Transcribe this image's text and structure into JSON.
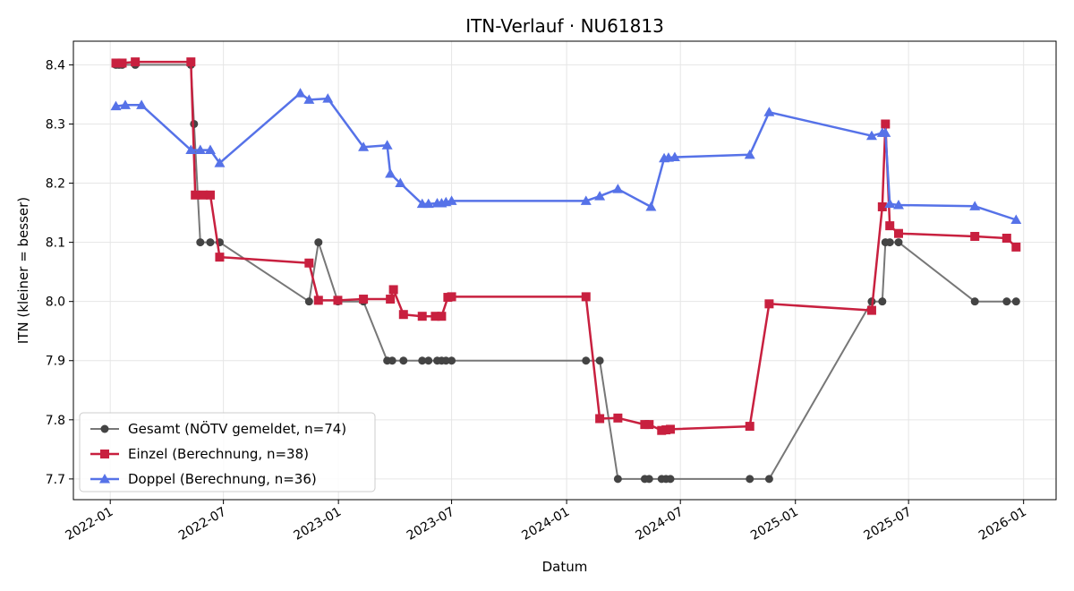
{
  "chart_data": {
    "type": "line",
    "title": "ITN-Verlauf · NU61813",
    "xlabel": "Datum",
    "ylabel": "ITN  (kleiner = besser)",
    "x_axis_type": "date",
    "xlim": [
      "2021-11-03",
      "2026-02-22"
    ],
    "ylim": [
      7.665,
      8.44
    ],
    "x_ticks": [
      "2022-01-01",
      "2022-07-01",
      "2023-01-01",
      "2023-07-01",
      "2024-01-01",
      "2024-07-01",
      "2025-01-01",
      "2025-07-01",
      "2026-01-01"
    ],
    "x_tick_labels": [
      "2022-01",
      "2022-07",
      "2023-01",
      "2023-07",
      "2024-01",
      "2024-07",
      "2025-01",
      "2025-07",
      "2026-01"
    ],
    "y_ticks": [
      7.7,
      7.8,
      7.9,
      8.0,
      8.1,
      8.2,
      8.3,
      8.4
    ],
    "y_tick_labels": [
      "7.7",
      "7.8",
      "7.9",
      "8.0",
      "8.1",
      "8.2",
      "8.3",
      "8.4"
    ],
    "grid": true,
    "legend_position": "bottom-left",
    "series": [
      {
        "name": "Gesamt (NÖTV gemeldet, n=74)",
        "color": "#777777",
        "marker_color": "#444444",
        "marker": "circle",
        "points": [
          [
            "2022-01-10",
            8.4
          ],
          [
            "2022-01-15",
            8.4
          ],
          [
            "2022-01-20",
            8.4
          ],
          [
            "2022-02-10",
            8.4
          ],
          [
            "2022-05-10",
            8.4
          ],
          [
            "2022-05-15",
            8.3
          ],
          [
            "2022-05-25",
            8.1
          ],
          [
            "2022-06-10",
            8.1
          ],
          [
            "2022-06-25",
            8.1
          ],
          [
            "2022-11-15",
            8.0
          ],
          [
            "2022-11-30",
            8.1
          ],
          [
            "2022-12-31",
            8.0
          ],
          [
            "2023-02-10",
            8.0
          ],
          [
            "2023-03-20",
            7.9
          ],
          [
            "2023-03-28",
            7.9
          ],
          [
            "2023-04-15",
            7.9
          ],
          [
            "2023-05-15",
            7.9
          ],
          [
            "2023-05-25",
            7.9
          ],
          [
            "2023-06-08",
            7.9
          ],
          [
            "2023-06-15",
            7.9
          ],
          [
            "2023-06-22",
            7.9
          ],
          [
            "2023-07-01",
            7.9
          ],
          [
            "2024-02-01",
            7.9
          ],
          [
            "2024-02-23",
            7.9
          ],
          [
            "2024-03-23",
            7.7
          ],
          [
            "2024-05-05",
            7.7
          ],
          [
            "2024-05-12",
            7.7
          ],
          [
            "2024-06-01",
            7.7
          ],
          [
            "2024-06-08",
            7.7
          ],
          [
            "2024-06-15",
            7.7
          ],
          [
            "2024-10-20",
            7.7
          ],
          [
            "2024-11-20",
            7.7
          ],
          [
            "2025-05-03",
            8.0
          ],
          [
            "2025-05-20",
            8.0
          ],
          [
            "2025-05-25",
            8.1
          ],
          [
            "2025-06-01",
            8.1
          ],
          [
            "2025-06-15",
            8.1
          ],
          [
            "2025-10-15",
            8.0
          ],
          [
            "2025-12-05",
            8.0
          ],
          [
            "2025-12-20",
            8.0
          ]
        ]
      },
      {
        "name": "Einzel (Berechnung, n=38)",
        "color": "#c8203f",
        "marker_color": "#c8203f",
        "marker": "square",
        "points": [
          [
            "2022-01-10",
            8.403
          ],
          [
            "2022-01-20",
            8.403
          ],
          [
            "2022-02-10",
            8.405
          ],
          [
            "2022-05-10",
            8.405
          ],
          [
            "2022-05-17",
            8.18
          ],
          [
            "2022-05-30",
            8.18
          ],
          [
            "2022-06-10",
            8.18
          ],
          [
            "2022-06-25",
            8.075
          ],
          [
            "2022-11-15",
            8.065
          ],
          [
            "2022-11-30",
            8.002
          ],
          [
            "2022-12-31",
            8.002
          ],
          [
            "2023-02-10",
            8.004
          ],
          [
            "2023-03-25",
            8.004
          ],
          [
            "2023-03-30",
            8.02
          ],
          [
            "2023-04-15",
            7.978
          ],
          [
            "2023-05-15",
            7.975
          ],
          [
            "2023-06-05",
            7.975
          ],
          [
            "2023-06-15",
            7.975
          ],
          [
            "2023-06-25",
            8.007
          ],
          [
            "2023-07-01",
            8.008
          ],
          [
            "2024-02-01",
            8.008
          ],
          [
            "2024-02-23",
            7.802
          ],
          [
            "2024-03-23",
            7.803
          ],
          [
            "2024-05-05",
            7.792
          ],
          [
            "2024-05-12",
            7.792
          ],
          [
            "2024-06-01",
            7.782
          ],
          [
            "2024-06-08",
            7.783
          ],
          [
            "2024-06-15",
            7.784
          ],
          [
            "2024-10-20",
            7.789
          ],
          [
            "2024-11-20",
            7.996
          ],
          [
            "2025-05-03",
            7.985
          ],
          [
            "2025-05-20",
            8.16
          ],
          [
            "2025-05-25",
            8.3
          ],
          [
            "2025-06-01",
            8.128
          ],
          [
            "2025-06-15",
            8.115
          ],
          [
            "2025-10-15",
            8.11
          ],
          [
            "2025-12-05",
            8.107
          ],
          [
            "2025-12-20",
            8.092
          ]
        ]
      },
      {
        "name": "Doppel (Berechnung, n=36)",
        "color": "#5672e8",
        "marker_color": "#5672e8",
        "marker": "triangle",
        "points": [
          [
            "2022-01-10",
            8.33
          ],
          [
            "2022-01-25",
            8.332
          ],
          [
            "2022-02-20",
            8.332
          ],
          [
            "2022-05-10",
            8.256
          ],
          [
            "2022-05-25",
            8.256
          ],
          [
            "2022-06-10",
            8.256
          ],
          [
            "2022-06-25",
            8.234
          ],
          [
            "2022-11-01",
            8.352
          ],
          [
            "2022-11-15",
            8.341
          ],
          [
            "2022-12-15",
            8.343
          ],
          [
            "2023-02-10",
            8.261
          ],
          [
            "2023-03-20",
            8.264
          ],
          [
            "2023-03-25",
            8.216
          ],
          [
            "2023-04-10",
            8.2
          ],
          [
            "2023-05-15",
            8.165
          ],
          [
            "2023-05-25",
            8.165
          ],
          [
            "2023-06-08",
            8.166
          ],
          [
            "2023-06-15",
            8.166
          ],
          [
            "2023-06-22",
            8.168
          ],
          [
            "2023-07-01",
            8.17
          ],
          [
            "2024-02-01",
            8.17
          ],
          [
            "2024-02-23",
            8.178
          ],
          [
            "2024-03-23",
            8.19
          ],
          [
            "2024-05-15",
            8.16
          ],
          [
            "2024-06-05",
            8.242
          ],
          [
            "2024-06-12",
            8.243
          ],
          [
            "2024-06-22",
            8.244
          ],
          [
            "2024-10-20",
            8.248
          ],
          [
            "2024-11-20",
            8.32
          ],
          [
            "2025-05-03",
            8.28
          ],
          [
            "2025-05-20",
            8.285
          ],
          [
            "2025-05-25",
            8.285
          ],
          [
            "2025-06-01",
            8.165
          ],
          [
            "2025-06-15",
            8.163
          ],
          [
            "2025-10-15",
            8.161
          ],
          [
            "2025-12-20",
            8.138
          ]
        ]
      }
    ]
  }
}
